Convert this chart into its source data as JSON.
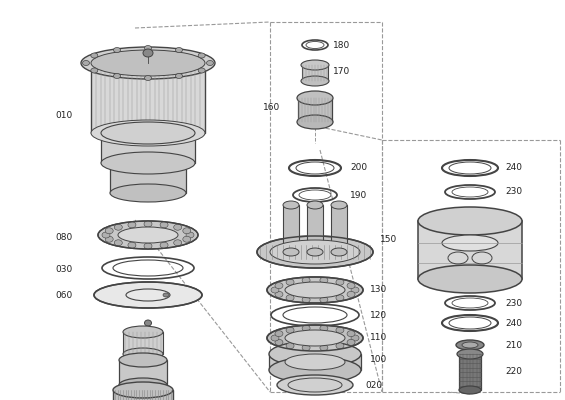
{
  "bg_color": "#ffffff",
  "line_color": "#444444",
  "dashed_color": "#999999",
  "text_color": "#222222",
  "figsize": [
    5.65,
    4.0
  ],
  "dpi": 100,
  "xlim": [
    0,
    565
  ],
  "ylim": [
    0,
    400
  ]
}
